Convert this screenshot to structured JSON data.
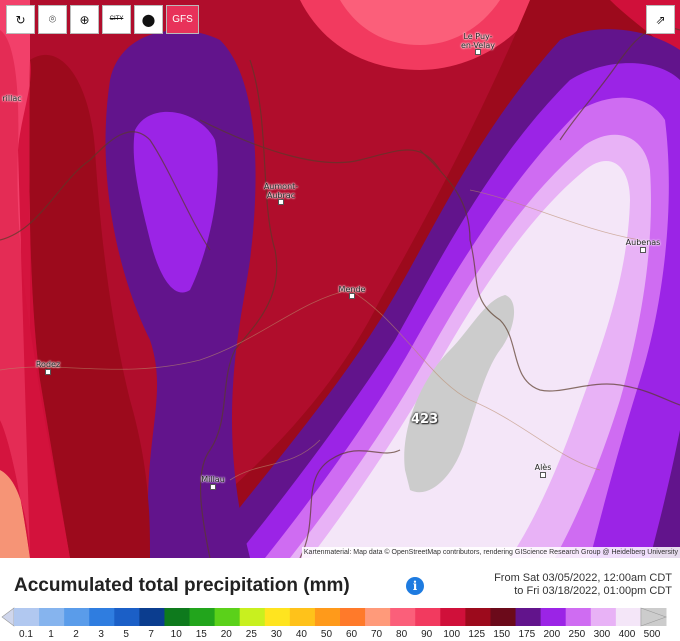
{
  "toolbar": {
    "buttons": [
      {
        "name": "refresh-button",
        "icon": "refresh-icon",
        "glyph": "↻"
      },
      {
        "name": "location-button",
        "icon": "location-pin-icon",
        "glyph": "⌾"
      },
      {
        "name": "zoom-button",
        "icon": "zoom-icon",
        "glyph": "⊕"
      },
      {
        "name": "city-toggle-button",
        "icon": "city-icon",
        "glyph": "CITY"
      },
      {
        "name": "point-button",
        "icon": "balloon-icon",
        "glyph": "●"
      }
    ],
    "model": "GFS",
    "share_glyph": "⇗"
  },
  "map": {
    "cities": [
      {
        "id": "le-puy",
        "name": "Le Puy-\nen-Velay"
      },
      {
        "id": "aurillac",
        "name": "rillac"
      },
      {
        "id": "aumont",
        "name": "Aumont-\nAubrac"
      },
      {
        "id": "mende",
        "name": "Mende"
      },
      {
        "id": "aubenas",
        "name": "Aubenas"
      },
      {
        "id": "rodez",
        "name": "Rodez"
      },
      {
        "id": "millau",
        "name": "Millau"
      },
      {
        "id": "ales",
        "name": "Alès"
      }
    ],
    "max_value": "423",
    "attribution": "Kartenmaterial: Map data © OpenStreetMap contributors, rendering GIScience Research Group @ Heidelberg University"
  },
  "legend": {
    "title": "Accumulated total precipitation (mm)",
    "info_glyph": "i",
    "range_from": "From Sat 03/05/2022, 12:00am CDT",
    "range_to": "to Fri 03/18/2022, 01:00pm CDT",
    "ticks": [
      "0.1",
      "1",
      "2",
      "3",
      "5",
      "7",
      "10",
      "15",
      "20",
      "25",
      "30",
      "40",
      "50",
      "60",
      "70",
      "80",
      "90",
      "100",
      "125",
      "150",
      "175",
      "200",
      "250",
      "300",
      "400",
      "500"
    ],
    "colors": [
      "#cfd6ec",
      "#b1c8f0",
      "#86b4ee",
      "#5a9cea",
      "#2f7de0",
      "#1b5fc7",
      "#0b3d8f",
      "#0e7a1d",
      "#22a51c",
      "#5bd11a",
      "#c8f01f",
      "#ffe41f",
      "#ffc21a",
      "#ff9a1a",
      "#ff7a2a",
      "#ff9a7a",
      "#fb5f7a",
      "#f23a5f",
      "#d0103a",
      "#9c0a1c",
      "#6b0a1a",
      "#62148c",
      "#9b24e6",
      "#cf6cf2",
      "#e8b2f6",
      "#f4e6f8",
      "#cccccc"
    ]
  },
  "colors": {
    "model_button": "#e8325a",
    "info": "#1e7be0"
  }
}
